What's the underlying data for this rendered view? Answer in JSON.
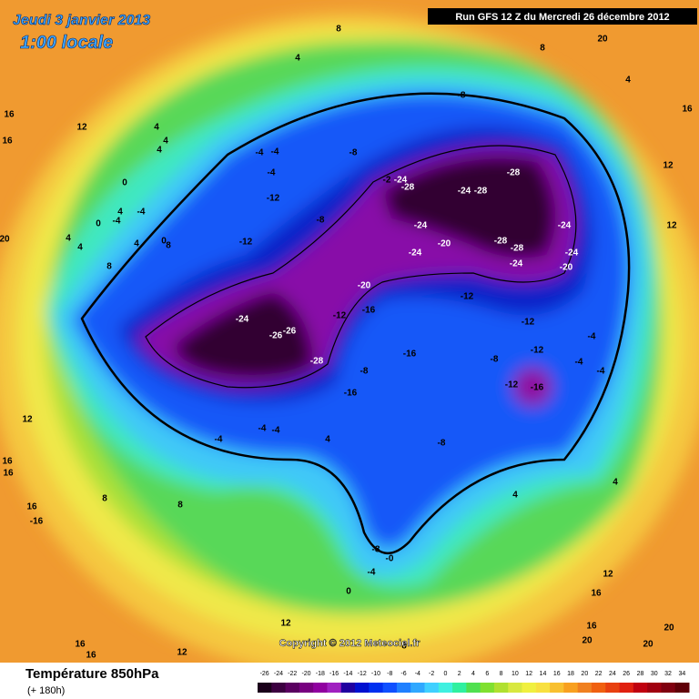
{
  "header": {
    "date": "Jeudi 3 janvier 2013",
    "time": "1:00 locale",
    "run": "Run GFS 12 Z du Mercredi 26 décembre 2012"
  },
  "map": {
    "copyright": "Copyright © 2012 Meteociel.fr",
    "contour_labels": [
      "8",
      "4",
      "12",
      "16",
      "16",
      "4",
      "4",
      "4",
      "-8",
      "-8",
      "-4",
      "-4",
      "-4",
      "-12",
      "-2",
      "-24",
      "-28",
      "-28",
      "-24",
      "-28",
      "-24",
      "-24",
      "-20",
      "-28",
      "-28",
      "-24",
      "-24",
      "-20",
      "-24",
      "-12",
      "-8",
      "-20",
      "-12",
      "-16",
      "-12",
      "-24",
      "-26",
      "-26",
      "-28",
      "-12",
      "-12",
      "-8",
      "-16",
      "-8",
      "-16",
      "-12",
      "-16",
      "-4",
      "-4",
      "-4",
      "-4",
      "-4",
      "-4",
      "4",
      "-8",
      "-8",
      "-0",
      "-4",
      "0",
      "4",
      "4",
      "8",
      "16",
      "-16",
      "12",
      "12",
      "16",
      "16",
      "16",
      "20",
      "20",
      "8",
      "12",
      "16",
      "12",
      "12",
      "16",
      "20",
      "16",
      "16",
      "12",
      "8",
      "4",
      "0",
      "0",
      "4",
      "4",
      "-4",
      "4",
      "8",
      "-4",
      "0",
      "8",
      "4",
      "8",
      "20",
      "20"
    ]
  },
  "legend": {
    "title": "Température 850hPa",
    "subtitle": "(+ 180h)",
    "labels": [
      "-26",
      "-24",
      "-22",
      "-20",
      "-18",
      "-16",
      "-14",
      "-12",
      "-10",
      "-8",
      "-6",
      "-4",
      "-2",
      "0",
      "2",
      "4",
      "6",
      "8",
      "10",
      "12",
      "14",
      "16",
      "18",
      "20",
      "22",
      "24",
      "26",
      "28",
      "30",
      "32",
      "34"
    ],
    "colors": [
      "#1a001a",
      "#3c0040",
      "#5a0060",
      "#780080",
      "#9000a0",
      "#a020c0",
      "#2000a0",
      "#0010d0",
      "#0030f0",
      "#1050ff",
      "#2080ff",
      "#30a8ff",
      "#40d0ff",
      "#40f0e0",
      "#30f0a0",
      "#50e050",
      "#80e030",
      "#b0e030",
      "#d8e840",
      "#f0f040",
      "#f8e040",
      "#f8c030",
      "#f8a020",
      "#f08020",
      "#f06010",
      "#e84010",
      "#e02010",
      "#c00010",
      "#a00010",
      "#800010",
      "#600008"
    ]
  }
}
